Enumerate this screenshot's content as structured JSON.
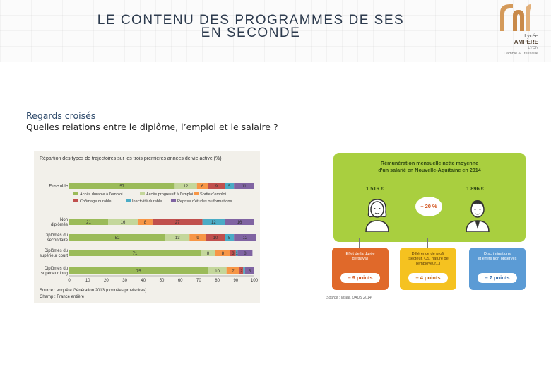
{
  "slide": {
    "title_line1": "LE CONTENU DES PROGRAMMES DE SES",
    "title_line2": "EN SECONDE",
    "subtitle_line1": "Regards croisés",
    "subtitle_line2": "Quelles relations entre le diplôme, l’emploi et le salaire ?"
  },
  "logo": {
    "line1": "Lycée",
    "line2": "AMPERE",
    "line3": "LYON",
    "line4": "Cambie & Tressaille"
  },
  "left_chart": {
    "source_line1": "Source : enquête Génération 2013 (données provisoires).",
    "source_line2": "Champ : France entière"
  },
  "chart_data": [
    {
      "type": "bar",
      "stacked": true,
      "orientation": "horizontal",
      "title": "Répartion des types de trajectoires sur les trois premières années de vie active (%)",
      "categories": [
        "Ensemble",
        "Non diplômés",
        "Diplômés du secondaire",
        "Diplômés du supérieur court",
        "Diplômés du supérieur long"
      ],
      "series": [
        {
          "name": "Accès durable à l'emploi",
          "color": "#9bbb59",
          "values": [
            57,
            21,
            52,
            71,
            75
          ]
        },
        {
          "name": "Accès progressif à l'emploi",
          "color": "#c4d79b",
          "values": [
            12,
            16,
            13,
            8,
            10
          ]
        },
        {
          "name": "Sortie d'emploi",
          "color": "#f79646",
          "values": [
            6,
            8,
            9,
            8,
            7
          ]
        },
        {
          "name": "Chômage durable",
          "color": "#c0504d",
          "values": [
            9,
            27,
            10,
            3,
            2
          ]
        },
        {
          "name": "Inactivité durable",
          "color": "#4bacc6",
          "values": [
            5,
            12,
            5,
            1,
            1
          ]
        },
        {
          "name": "Reprise d'études ou formations",
          "color": "#8064a2",
          "values": [
            11,
            16,
            12,
            8,
            5
          ]
        }
      ],
      "value_labels": [
        [
          "57",
          "12",
          "6",
          "9",
          "5",
          "11"
        ],
        [
          "21",
          "16",
          "8",
          "27",
          "12",
          "16"
        ],
        [
          "52",
          "13",
          "9",
          "10",
          "5",
          "12"
        ],
        [
          "71",
          "8",
          "8",
          "3",
          "1",
          "8"
        ],
        [
          "75",
          "10",
          "7",
          "2",
          "1",
          "5"
        ]
      ],
      "xlim": [
        0,
        100
      ],
      "x_ticks": [
        "0",
        "10",
        "20",
        "30",
        "40",
        "50",
        "60",
        "70",
        "80",
        "90",
        "100"
      ],
      "grid": false,
      "legend_position": "inside-top"
    }
  ],
  "infographic": {
    "title_line1": "Rémunération mensuelle nette moyenne",
    "title_line2": "d'un salarié en Nouvelle-Aquitaine en 2014",
    "salary_women": "1 516 €",
    "salary_men": "1 896 €",
    "gap": "– 20 %",
    "factors": [
      {
        "label_line1": "Effet de la durée",
        "label_line2": "de travail",
        "label_line3": "",
        "points": "– 9 points"
      },
      {
        "label_line1": "Différence de profil",
        "label_line2": "(secteur, CS, nature de",
        "label_line3": "l'employeur...)",
        "points": "– 4 points"
      },
      {
        "label_line1": "Discriminations",
        "label_line2": "et effets non observés",
        "label_line3": "",
        "points": "– 7 points"
      }
    ],
    "source": "Source : Insee, DADS 2014"
  }
}
